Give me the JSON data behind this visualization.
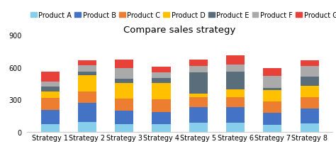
{
  "title": "Compare sales strategy",
  "categories": [
    "Strategy 1",
    "Strategy 2",
    "Strategy 3",
    "Strategy 4",
    "Strategy 5",
    "Strategy 6",
    "Strategy 7",
    "Strategy 8"
  ],
  "products": [
    "Product A",
    "Product B",
    "Product C",
    "Product D",
    "Product E",
    "Product F",
    "Product G"
  ],
  "colors": [
    "#87CEEB",
    "#4472C4",
    "#ED7D31",
    "#FFC000",
    "#596E7A",
    "#AAAAAA",
    "#E8413A"
  ],
  "values": {
    "Product A": [
      75,
      90,
      75,
      70,
      85,
      85,
      65,
      80
    ],
    "Product B": [
      130,
      180,
      125,
      115,
      145,
      145,
      110,
      140
    ],
    "Product C": [
      110,
      105,
      110,
      115,
      95,
      90,
      110,
      100
    ],
    "Product D": [
      60,
      150,
      145,
      155,
      30,
      75,
      100,
      110
    ],
    "Product E": [
      45,
      35,
      40,
      45,
      200,
      165,
      25,
      80
    ],
    "Product F": [
      50,
      55,
      95,
      55,
      55,
      65,
      110,
      100
    ],
    "Product G": [
      90,
      50,
      80,
      50,
      60,
      85,
      75,
      55
    ]
  },
  "ylim": [
    0,
    900
  ],
  "yticks": [
    0,
    300,
    600,
    900
  ],
  "legend_fontsize": 7,
  "title_fontsize": 9.5,
  "tick_fontsize": 7,
  "bar_width": 0.5,
  "background_color": "#ffffff"
}
